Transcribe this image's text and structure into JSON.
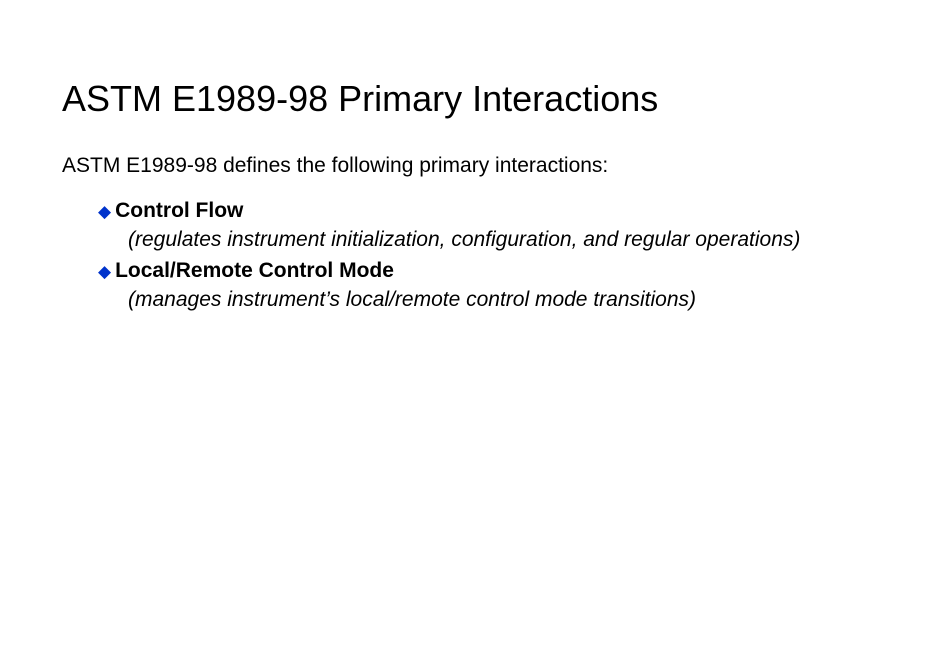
{
  "slide": {
    "title": "ASTM E1989-98 Primary Interactions",
    "intro": "ASTM E1989-98 defines the following primary interactions:",
    "items": [
      {
        "title": "Control Flow",
        "desc": "(regulates instrument initialization, configuration, and regular operations)"
      },
      {
        "title": "Local/Remote Control Mode",
        "desc": "(manages instrument’s local/remote control mode transitions)"
      }
    ],
    "bullet_glyph": "◆",
    "colors": {
      "bullet": "#0033cc",
      "text": "#000000",
      "background": "#ffffff"
    },
    "typography": {
      "title_fontsize_pt": 28,
      "body_fontsize_pt": 16,
      "title_fontfamily": "Arial",
      "body_fontfamily": "Verdana"
    }
  }
}
